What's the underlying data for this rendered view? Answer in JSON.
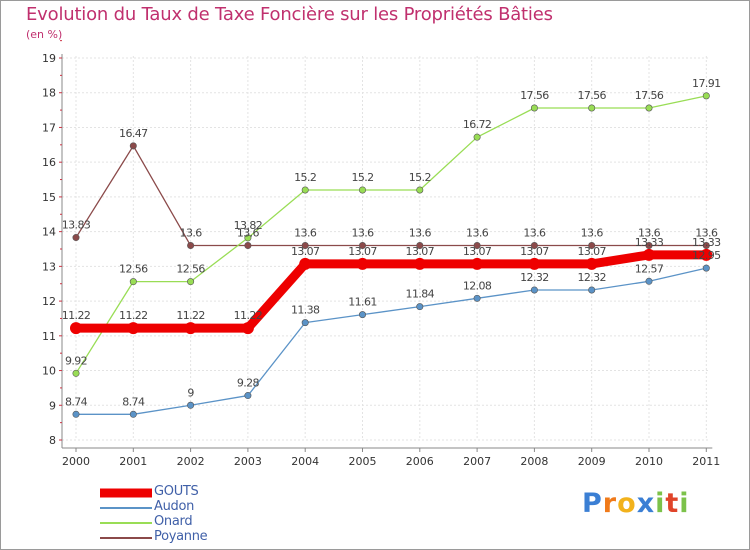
{
  "chart_data": {
    "type": "line",
    "title": "Evolution du Taux de Taxe Foncière sur les Propriétés Bâties",
    "unit": "(en %)",
    "x": [
      "2000",
      "2001",
      "2002",
      "2003",
      "2004",
      "2005",
      "2006",
      "2007",
      "2008",
      "2009",
      "2010",
      "2011"
    ],
    "ylim": [
      8,
      19
    ],
    "yticks": [
      "8",
      "9",
      "10",
      "11",
      "12",
      "13",
      "14",
      "15",
      "16",
      "17",
      "18",
      "19"
    ],
    "series": [
      {
        "name": "GOUTS",
        "color": "#ee0000",
        "values": [
          11.22,
          11.22,
          11.22,
          11.22,
          13.07,
          13.07,
          13.07,
          13.07,
          13.07,
          13.07,
          13.33,
          13.33
        ],
        "labels": [
          "11.22",
          "11.22",
          "11.22",
          "11.22",
          "13.07",
          "13.07",
          "13.07",
          "13.07",
          "13.07",
          "13.07",
          "13.33",
          "13.33"
        ]
      },
      {
        "name": "Audon",
        "color": "#5b93c7",
        "values": [
          8.74,
          8.74,
          9,
          9.28,
          11.38,
          11.61,
          11.84,
          12.08,
          12.32,
          12.32,
          12.57,
          12.95
        ],
        "labels": [
          "8.74",
          "8.74",
          "9",
          "9.28",
          "11.38",
          "11.61",
          "11.84",
          "12.08",
          "12.32",
          "12.32",
          "12.57",
          "12.95"
        ]
      },
      {
        "name": "Onard",
        "color": "#99dd55",
        "values": [
          9.92,
          12.56,
          12.56,
          13.82,
          15.2,
          15.2,
          15.2,
          16.72,
          17.56,
          17.56,
          17.56,
          17.91
        ],
        "labels": [
          "9.92",
          "12.56",
          "12.56",
          "13.82",
          "15.2",
          "15.2",
          "15.2",
          "16.72",
          "17.56",
          "17.56",
          "17.56",
          "17.91"
        ]
      },
      {
        "name": "Poyanne",
        "color": "#8b4a4a",
        "values": [
          13.83,
          16.47,
          13.6,
          13.6,
          13.6,
          13.6,
          13.6,
          13.6,
          13.6,
          13.6,
          13.6,
          13.6
        ],
        "labels": [
          "13.83",
          "16.47",
          "13.6",
          "13.6",
          "13.6",
          "13.6",
          "13.6",
          "13.6",
          "13.6",
          "13.6",
          "13.6",
          "13.6"
        ]
      }
    ],
    "grid": true,
    "legend": "bottom-left"
  },
  "logo": {
    "letters": [
      "P",
      "r",
      "o",
      "x",
      "i",
      "t",
      "i"
    ],
    "colors": [
      "#3b7fd4",
      "#f07a1a",
      "#f2b21c",
      "#3b7fd4",
      "#7cc24a",
      "#e0442a",
      "#7cc24a"
    ],
    "alt": "Proxiti"
  }
}
